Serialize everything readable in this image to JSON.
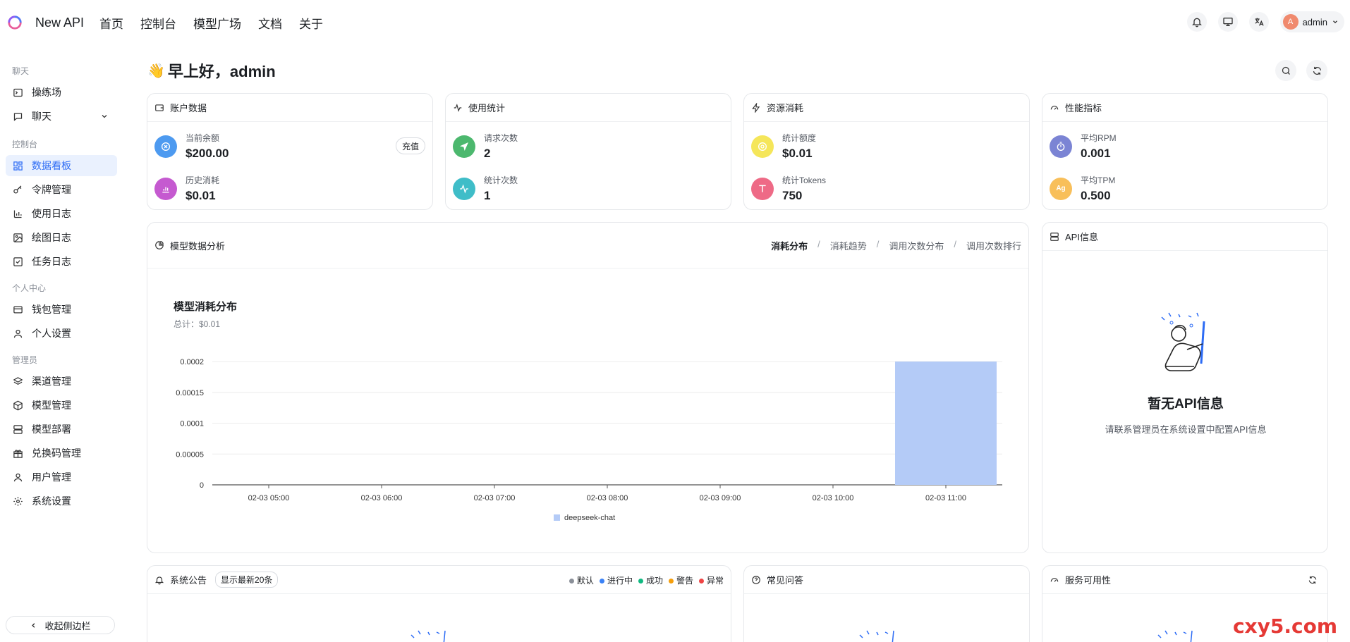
{
  "header": {
    "brand": "New API",
    "nav": [
      "首页",
      "控制台",
      "模型广场",
      "文档",
      "关于"
    ],
    "user": {
      "avatar_letter": "A",
      "name": "admin"
    }
  },
  "sidebar": {
    "sections": {
      "chat": "聊天",
      "console": "控制台",
      "personal": "个人中心",
      "admin": "管理员"
    },
    "items": {
      "playground": "操练场",
      "chat": "聊天",
      "dashboard": "数据看板",
      "tokens": "令牌管理",
      "usage_log": "使用日志",
      "draw_log": "绘图日志",
      "task_log": "任务日志",
      "wallet": "钱包管理",
      "profile": "个人设置",
      "channels": "渠道管理",
      "models": "模型管理",
      "deploy": "模型部署",
      "redeem": "兑换码管理",
      "users": "用户管理",
      "settings": "系统设置"
    },
    "collapse_label": "收起侧边栏"
  },
  "greeting": "早上好，admin",
  "cards": {
    "account": {
      "title": "账户数据",
      "balance_label": "当前余额",
      "balance_value": "$200.00",
      "charge_label": "充值",
      "spent_label": "历史消耗",
      "spent_value": "$0.01"
    },
    "usage": {
      "title": "使用统计",
      "requests_label": "请求次数",
      "requests_value": "2",
      "count_label": "统计次数",
      "count_value": "1"
    },
    "resource": {
      "title": "资源消耗",
      "quota_label": "统计额度",
      "quota_value": "$0.01",
      "tokens_label": "统计Tokens",
      "tokens_value": "750"
    },
    "performance": {
      "title": "性能指标",
      "rpm_label": "平均RPM",
      "rpm_value": "0.001",
      "tpm_label": "平均TPM",
      "tpm_value": "0.500"
    }
  },
  "analysis": {
    "title": "模型数据分析",
    "tabs": [
      "消耗分布",
      "消耗趋势",
      "调用次数分布",
      "调用次数排行"
    ],
    "separator": "/"
  },
  "api_info": {
    "title": "API信息",
    "empty_title": "暂无API信息",
    "empty_desc": "请联系管理员在系统设置中配置API信息"
  },
  "announcements": {
    "title": "系统公告",
    "badge": "显示最新20条",
    "legend": [
      {
        "label": "默认",
        "color": "#8a8f98"
      },
      {
        "label": "进行中",
        "color": "#3b82f6"
      },
      {
        "label": "成功",
        "color": "#10b981"
      },
      {
        "label": "警告",
        "color": "#f59e0b"
      },
      {
        "label": "异常",
        "color": "#ef4444"
      }
    ]
  },
  "faq": {
    "title": "常见问答"
  },
  "availability": {
    "title": "服务可用性"
  },
  "watermark": "cxy5.com",
  "chart_data": {
    "type": "bar",
    "title": "模型消耗分布",
    "subtitle": "总计：$0.01",
    "categories": [
      "02-03 05:00",
      "02-03 06:00",
      "02-03 07:00",
      "02-03 08:00",
      "02-03 09:00",
      "02-03 10:00",
      "02-03 11:00"
    ],
    "series": [
      {
        "name": "deepseek-chat",
        "values": [
          0,
          0,
          0,
          0,
          0,
          0,
          0.0002
        ],
        "color": "#b4cbf7"
      }
    ],
    "yticks": [
      "0",
      "0.00005",
      "0.0001",
      "0.00015",
      "0.0002"
    ],
    "ylim": [
      0,
      0.0002
    ],
    "grid": true,
    "legend": "bottom"
  }
}
